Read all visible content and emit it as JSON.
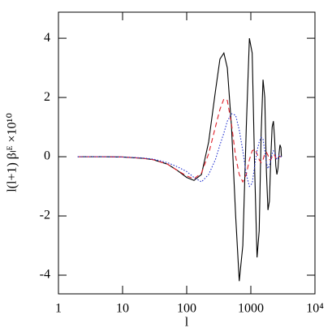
{
  "chart_data": {
    "type": "line",
    "xlabel": "l",
    "ylabel": "l(l+1)  βₗᴱ ×10¹⁰",
    "xscale": "log",
    "xlim": [
      1,
      10000
    ],
    "ylim": [
      -4.63,
      4.88
    ],
    "xticks": [
      1,
      10,
      100,
      1000,
      {
        "value": 10000,
        "label": "10⁴"
      }
    ],
    "yticks": [
      -4,
      -2,
      0,
      2,
      4
    ],
    "x": [
      2,
      5,
      10,
      20,
      30,
      50,
      70,
      100,
      130,
      170,
      220,
      280,
      330,
      380,
      430,
      500,
      580,
      660,
      750,
      850,
      950,
      1050,
      1150,
      1250,
      1350,
      1450,
      1550,
      1650,
      1750,
      1850,
      1950,
      2050,
      2150,
      2250,
      2350,
      2450,
      2550,
      2650,
      2750,
      2850,
      2950,
      3000
    ],
    "series": [
      {
        "color": "#000000",
        "style": "solid",
        "values": [
          0,
          0,
          -0.01,
          -0.05,
          -0.1,
          -0.25,
          -0.45,
          -0.7,
          -0.8,
          -0.6,
          0.5,
          2.2,
          3.3,
          3.5,
          3.0,
          1.0,
          -2.0,
          -4.2,
          -3.0,
          1.0,
          4.0,
          3.5,
          -0.5,
          -3.4,
          -2.5,
          0.8,
          2.6,
          2.0,
          -0.5,
          -1.8,
          -1.5,
          0,
          1.0,
          1.2,
          0.6,
          -0.3,
          -0.6,
          -0.4,
          0.1,
          0.4,
          0.3,
          0
        ]
      },
      {
        "color": "#e0202a",
        "style": "dashed",
        "values": [
          0,
          0,
          -0.01,
          -0.05,
          -0.1,
          -0.25,
          -0.45,
          -0.65,
          -0.75,
          -0.55,
          0.1,
          1.0,
          1.6,
          1.95,
          1.9,
          1.1,
          0.0,
          -0.6,
          -0.85,
          -0.6,
          -0.1,
          0.2,
          0.25,
          0.1,
          -0.1,
          -0.2,
          -0.1,
          0.1,
          0.15,
          0.05,
          -0.1,
          -0.1,
          0,
          0.08,
          0.05,
          -0.05,
          -0.05,
          0,
          0.03,
          0,
          0,
          0
        ]
      },
      {
        "color": "#2030d0",
        "style": "dotted",
        "values": [
          0,
          0,
          -0.01,
          -0.04,
          -0.08,
          -0.2,
          -0.33,
          -0.5,
          -0.7,
          -0.85,
          -0.6,
          -0.1,
          0.4,
          0.8,
          1.2,
          1.45,
          1.4,
          0.9,
          0.2,
          -0.6,
          -1.0,
          -0.9,
          -0.3,
          0.2,
          0.5,
          0.65,
          0.6,
          0.2,
          -0.2,
          -0.4,
          -0.3,
          -0.1,
          0.1,
          0.2,
          0.15,
          0,
          -0.1,
          -0.05,
          0.05,
          0.05,
          0,
          0
        ]
      }
    ]
  }
}
